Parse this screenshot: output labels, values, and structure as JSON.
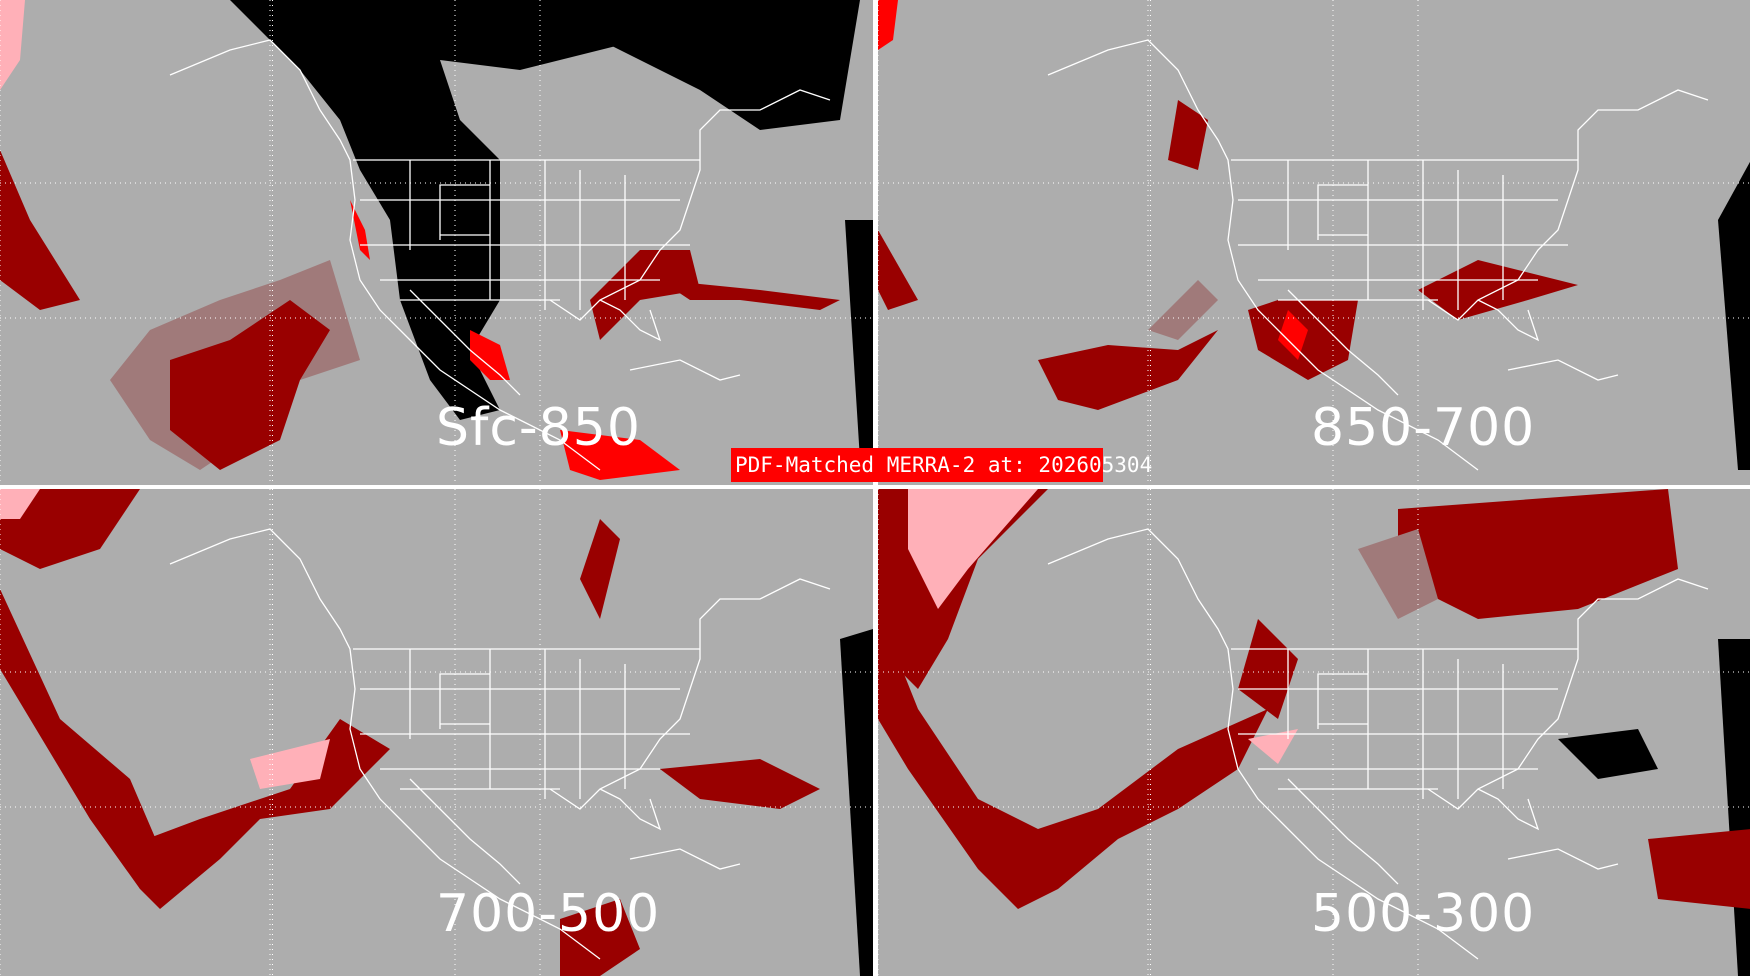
{
  "title": "PDF-Matched MERRA-2 at: 202605304",
  "colors": {
    "background": "#adadad",
    "black": "#000000",
    "dark_red": "#990000",
    "rose": "#a07a7a",
    "red": "#ff0000",
    "pink": "#ffb0b8",
    "banner": "#ff0000",
    "lines": "#ffffff"
  },
  "panels": [
    {
      "label": "Sfc-850"
    },
    {
      "label": "850-700"
    },
    {
      "label": "700-500"
    },
    {
      "label": "500-300"
    }
  ]
}
